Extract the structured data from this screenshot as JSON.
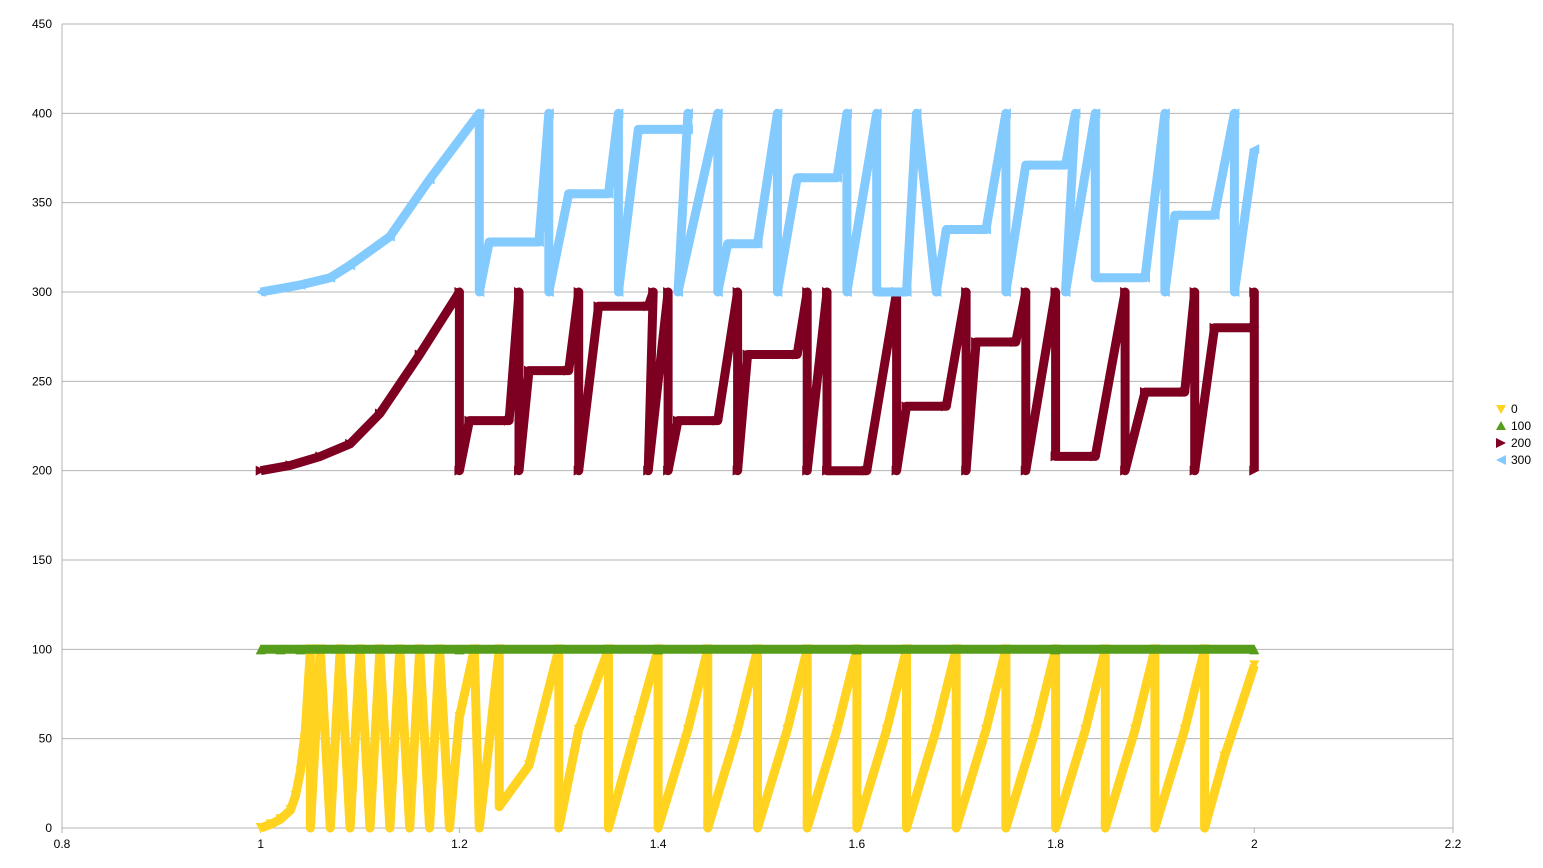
{
  "chart_data": {
    "type": "scatter",
    "title": "",
    "xlabel": "",
    "ylabel": "",
    "xlim": [
      0.8,
      2.2
    ],
    "ylim": [
      0,
      450
    ],
    "x_ticks": [
      "0.8",
      "1",
      "1.2",
      "1.4",
      "1.6",
      "1.8",
      "2",
      "2.2"
    ],
    "y_ticks": [
      "0",
      "50",
      "100",
      "150",
      "200",
      "250",
      "300",
      "350",
      "400",
      "450"
    ],
    "grid": true,
    "legend_position": "right",
    "series": [
      {
        "name": "0",
        "color": "#ffd320",
        "marker": "triangle-down",
        "points": [
          [
            1.0,
            0
          ],
          [
            1.01,
            2
          ],
          [
            1.02,
            5
          ],
          [
            1.03,
            10
          ],
          [
            1.035,
            18
          ],
          [
            1.04,
            32
          ],
          [
            1.045,
            55
          ],
          [
            1.05,
            100
          ],
          [
            1.05,
            0
          ],
          [
            1.06,
            100
          ],
          [
            1.07,
            0
          ],
          [
            1.08,
            100
          ],
          [
            1.09,
            0
          ],
          [
            1.1,
            100
          ],
          [
            1.11,
            0
          ],
          [
            1.12,
            100
          ],
          [
            1.13,
            0
          ],
          [
            1.14,
            100
          ],
          [
            1.15,
            0
          ],
          [
            1.16,
            100
          ],
          [
            1.17,
            0
          ],
          [
            1.18,
            100
          ],
          [
            1.19,
            0
          ],
          [
            1.2,
            62
          ],
          [
            1.215,
            100
          ],
          [
            1.22,
            0
          ],
          [
            1.23,
            48
          ],
          [
            1.24,
            100
          ],
          [
            1.24,
            12
          ],
          [
            1.27,
            35
          ],
          [
            1.3,
            100
          ],
          [
            1.3,
            0
          ],
          [
            1.32,
            55
          ],
          [
            1.35,
            100
          ],
          [
            1.35,
            0
          ],
          [
            1.38,
            60
          ],
          [
            1.4,
            100
          ],
          [
            1.4,
            0
          ],
          [
            1.43,
            55
          ],
          [
            1.45,
            100
          ],
          [
            1.45,
            0
          ],
          [
            1.48,
            55
          ],
          [
            1.5,
            100
          ],
          [
            1.5,
            0
          ],
          [
            1.53,
            55
          ],
          [
            1.55,
            100
          ],
          [
            1.55,
            0
          ],
          [
            1.58,
            55
          ],
          [
            1.6,
            100
          ],
          [
            1.6,
            0
          ],
          [
            1.63,
            55
          ],
          [
            1.65,
            100
          ],
          [
            1.65,
            0
          ],
          [
            1.68,
            55
          ],
          [
            1.7,
            100
          ],
          [
            1.7,
            0
          ],
          [
            1.73,
            55
          ],
          [
            1.75,
            100
          ],
          [
            1.75,
            0
          ],
          [
            1.78,
            55
          ],
          [
            1.8,
            100
          ],
          [
            1.8,
            0
          ],
          [
            1.83,
            55
          ],
          [
            1.85,
            100
          ],
          [
            1.85,
            0
          ],
          [
            1.88,
            55
          ],
          [
            1.9,
            100
          ],
          [
            1.9,
            0
          ],
          [
            1.93,
            55
          ],
          [
            1.95,
            100
          ],
          [
            1.95,
            0
          ],
          [
            1.97,
            40
          ],
          [
            2.0,
            91
          ]
        ]
      },
      {
        "name": "100",
        "color": "#579d1c",
        "marker": "triangle-up",
        "points": [
          [
            1.0,
            100
          ],
          [
            1.02,
            100
          ],
          [
            1.04,
            100
          ],
          [
            1.2,
            100
          ],
          [
            1.4,
            100
          ],
          [
            1.6,
            100
          ],
          [
            1.8,
            100
          ],
          [
            2.0,
            100
          ]
        ]
      },
      {
        "name": "200",
        "color": "#7e0021",
        "marker": "triangle-right",
        "points": [
          [
            1.0,
            200
          ],
          [
            1.03,
            203
          ],
          [
            1.06,
            208
          ],
          [
            1.09,
            215
          ],
          [
            1.12,
            232
          ],
          [
            1.16,
            265
          ],
          [
            1.2,
            300
          ],
          [
            1.2,
            200
          ],
          [
            1.21,
            228
          ],
          [
            1.25,
            228
          ],
          [
            1.26,
            300
          ],
          [
            1.26,
            200
          ],
          [
            1.27,
            256
          ],
          [
            1.31,
            256
          ],
          [
            1.32,
            300
          ],
          [
            1.32,
            200
          ],
          [
            1.34,
            292
          ],
          [
            1.39,
            292
          ],
          [
            1.395,
            300
          ],
          [
            1.39,
            200
          ],
          [
            1.41,
            300
          ],
          [
            1.41,
            200
          ],
          [
            1.42,
            228
          ],
          [
            1.46,
            228
          ],
          [
            1.48,
            300
          ],
          [
            1.48,
            200
          ],
          [
            1.49,
            265
          ],
          [
            1.54,
            265
          ],
          [
            1.55,
            300
          ],
          [
            1.55,
            200
          ],
          [
            1.57,
            300
          ],
          [
            1.57,
            200
          ],
          [
            1.61,
            200
          ],
          [
            1.64,
            300
          ],
          [
            1.64,
            200
          ],
          [
            1.65,
            236
          ],
          [
            1.69,
            236
          ],
          [
            1.71,
            300
          ],
          [
            1.71,
            200
          ],
          [
            1.72,
            272
          ],
          [
            1.76,
            272
          ],
          [
            1.77,
            300
          ],
          [
            1.77,
            200
          ],
          [
            1.8,
            300
          ],
          [
            1.8,
            208
          ],
          [
            1.84,
            208
          ],
          [
            1.87,
            300
          ],
          [
            1.87,
            200
          ],
          [
            1.89,
            244
          ],
          [
            1.93,
            244
          ],
          [
            1.94,
            300
          ],
          [
            1.94,
            200
          ],
          [
            1.96,
            280
          ],
          [
            2.0,
            280
          ],
          [
            2.0,
            300
          ],
          [
            2.0,
            200
          ]
        ]
      },
      {
        "name": "300",
        "color": "#83caff",
        "marker": "triangle-left",
        "points": [
          [
            1.0,
            300
          ],
          [
            1.04,
            304
          ],
          [
            1.07,
            308
          ],
          [
            1.09,
            315
          ],
          [
            1.13,
            331
          ],
          [
            1.17,
            363
          ],
          [
            1.22,
            400
          ],
          [
            1.22,
            300
          ],
          [
            1.23,
            328
          ],
          [
            1.28,
            328
          ],
          [
            1.29,
            400
          ],
          [
            1.29,
            300
          ],
          [
            1.31,
            355
          ],
          [
            1.35,
            355
          ],
          [
            1.36,
            400
          ],
          [
            1.36,
            300
          ],
          [
            1.38,
            391
          ],
          [
            1.43,
            391
          ],
          [
            1.43,
            400
          ],
          [
            1.42,
            300
          ],
          [
            1.46,
            400
          ],
          [
            1.46,
            300
          ],
          [
            1.47,
            327
          ],
          [
            1.5,
            327
          ],
          [
            1.52,
            400
          ],
          [
            1.52,
            300
          ],
          [
            1.54,
            364
          ],
          [
            1.58,
            364
          ],
          [
            1.59,
            400
          ],
          [
            1.59,
            300
          ],
          [
            1.62,
            400
          ],
          [
            1.62,
            300
          ],
          [
            1.65,
            300
          ],
          [
            1.66,
            400
          ],
          [
            1.68,
            300
          ],
          [
            1.69,
            335
          ],
          [
            1.73,
            335
          ],
          [
            1.75,
            400
          ],
          [
            1.75,
            300
          ],
          [
            1.77,
            371
          ],
          [
            1.81,
            371
          ],
          [
            1.82,
            400
          ],
          [
            1.81,
            300
          ],
          [
            1.84,
            400
          ],
          [
            1.84,
            308
          ],
          [
            1.89,
            308
          ],
          [
            1.91,
            400
          ],
          [
            1.91,
            300
          ],
          [
            1.92,
            343
          ],
          [
            1.96,
            343
          ],
          [
            1.98,
            400
          ],
          [
            1.98,
            300
          ],
          [
            2.0,
            380
          ]
        ]
      }
    ]
  }
}
